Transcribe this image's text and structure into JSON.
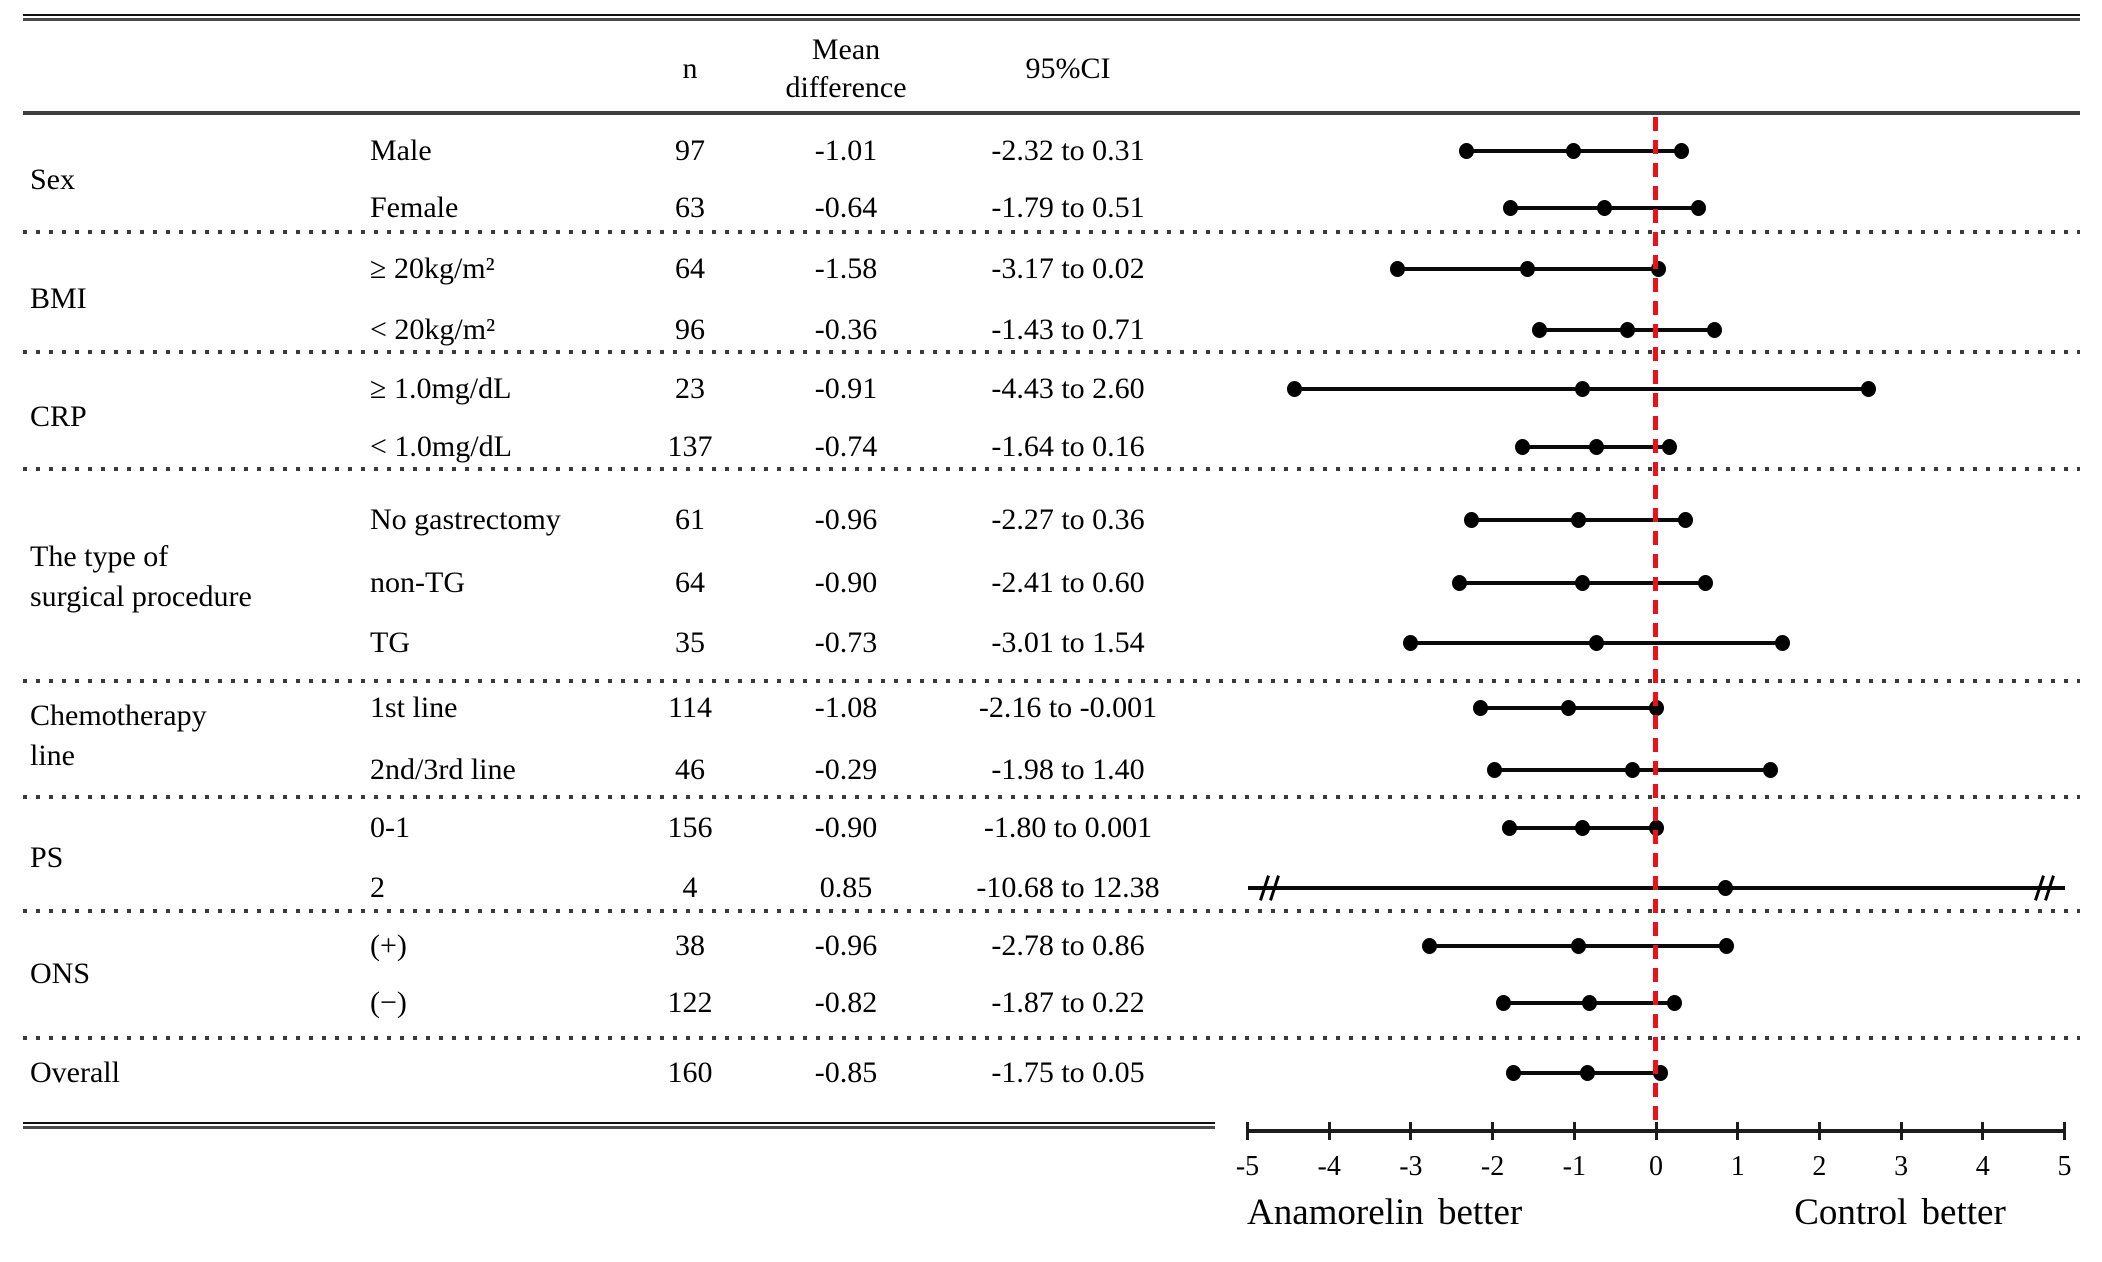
{
  "figure": {
    "header": {
      "n": "n",
      "mean_line1": "Mean",
      "mean_line2": "difference",
      "ci": "95%CI"
    },
    "axis_labels": {
      "left": "Anamorelin better",
      "right": "Control better"
    },
    "colors": {
      "marker": "#000000",
      "ci_line": "#0a0a0a",
      "reference_line": "#ea1218",
      "rule": "#3d3d3d"
    }
  },
  "chart_data": {
    "type": "forest",
    "xlim": [
      -5,
      5
    ],
    "x_ticks": [
      -5,
      -4,
      -3,
      -2,
      -1,
      0,
      1,
      2,
      3,
      4,
      5
    ],
    "x_tick_labels": [
      "-5",
      "-4",
      "-3",
      "-2",
      "-1",
      "0",
      "1",
      "2",
      "3",
      "4",
      "5"
    ],
    "reference_x": 0,
    "left_direction_label": "Anamorelin better",
    "right_direction_label": "Control better",
    "grid": false,
    "groups": [
      {
        "name_lines": [
          "Sex"
        ],
        "rows": [
          {
            "label": "Male",
            "n": "97",
            "mean": "-1.01",
            "ci": "-2.32 to 0.31",
            "lo": -2.32,
            "est": -1.01,
            "hi": 0.31,
            "overflow": false
          },
          {
            "label": "Female",
            "n": "63",
            "mean": "-0.64",
            "ci": "-1.79 to 0.51",
            "lo": -1.79,
            "est": -0.64,
            "hi": 0.51,
            "overflow": false
          }
        ]
      },
      {
        "name_lines": [
          "BMI"
        ],
        "rows": [
          {
            "label": "≥ 20kg/m²",
            "n": "64",
            "mean": "-1.58",
            "ci": "-3.17 to 0.02",
            "lo": -3.17,
            "est": -1.58,
            "hi": 0.02,
            "overflow": false
          },
          {
            "label": "< 20kg/m²",
            "n": "96",
            "mean": "-0.36",
            "ci": "-1.43 to 0.71",
            "lo": -1.43,
            "est": -0.36,
            "hi": 0.71,
            "overflow": false
          }
        ]
      },
      {
        "name_lines": [
          "CRP"
        ],
        "rows": [
          {
            "label": "≥ 1.0mg/dL",
            "n": "23",
            "mean": "-0.91",
            "ci": "-4.43 to 2.60",
            "lo": -4.43,
            "est": -0.91,
            "hi": 2.6,
            "overflow": false
          },
          {
            "label": "< 1.0mg/dL",
            "n": "137",
            "mean": "-0.74",
            "ci": "-1.64 to 0.16",
            "lo": -1.64,
            "est": -0.74,
            "hi": 0.16,
            "overflow": false
          }
        ]
      },
      {
        "name_lines": [
          "The type of",
          "surgical procedure"
        ],
        "rows": [
          {
            "label": "No gastrectomy",
            "n": "61",
            "mean": "-0.96",
            "ci": "-2.27 to 0.36",
            "lo": -2.27,
            "est": -0.96,
            "hi": 0.36,
            "overflow": false
          },
          {
            "label": "non-TG",
            "n": "64",
            "mean": "-0.90",
            "ci": "-2.41 to 0.60",
            "lo": -2.41,
            "est": -0.9,
            "hi": 0.6,
            "overflow": false
          },
          {
            "label": "TG",
            "n": "35",
            "mean": "-0.73",
            "ci": "-3.01 to 1.54",
            "lo": -3.01,
            "est": -0.73,
            "hi": 1.54,
            "overflow": false
          }
        ]
      },
      {
        "name_lines": [
          "Chemotherapy",
          "line"
        ],
        "rows": [
          {
            "label": "1st line",
            "n": "114",
            "mean": "-1.08",
            "ci": "-2.16 to -0.001",
            "lo": -2.16,
            "est": -1.08,
            "hi": -0.001,
            "overflow": false
          },
          {
            "label": "2nd/3rd line",
            "n": "46",
            "mean": "-0.29",
            "ci": "-1.98 to 1.40",
            "lo": -1.98,
            "est": -0.29,
            "hi": 1.4,
            "overflow": false
          }
        ]
      },
      {
        "name_lines": [
          "PS"
        ],
        "rows": [
          {
            "label": "0-1",
            "n": "156",
            "mean": "-0.90",
            "ci": "-1.80 to 0.001",
            "lo": -1.8,
            "est": -0.9,
            "hi": 0.001,
            "overflow": false
          },
          {
            "label": "2",
            "n": "4",
            "mean": "0.85",
            "ci": "-10.68 to 12.38",
            "lo": -10.68,
            "est": 0.85,
            "hi": 12.38,
            "overflow": true
          }
        ]
      },
      {
        "name_lines": [
          "ONS"
        ],
        "rows": [
          {
            "label": "(+)",
            "n": "38",
            "mean": "-0.96",
            "ci": "-2.78 to 0.86",
            "lo": -2.78,
            "est": -0.96,
            "hi": 0.86,
            "overflow": false
          },
          {
            "label": "(−)",
            "n": "122",
            "mean": "-0.82",
            "ci": "-1.87 to 0.22",
            "lo": -1.87,
            "est": -0.82,
            "hi": 0.22,
            "overflow": false
          }
        ]
      },
      {
        "name_lines": [
          "Overall"
        ],
        "rows": [
          {
            "label": "",
            "n": "160",
            "mean": "-0.85",
            "ci": "-1.75 to 0.05",
            "lo": -1.75,
            "est": -0.85,
            "hi": 0.05,
            "overflow": false
          }
        ]
      }
    ]
  }
}
